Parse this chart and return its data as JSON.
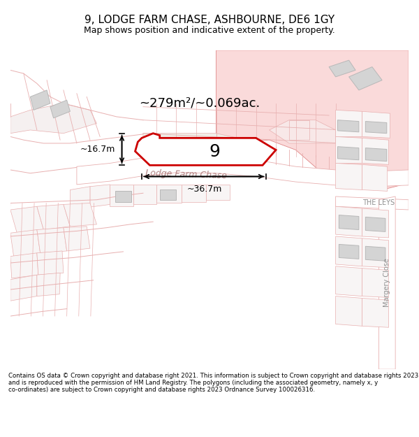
{
  "title": "9, LODGE FARM CHASE, ASHBOURNE, DE6 1GY",
  "subtitle": "Map shows position and indicative extent of the property.",
  "footer": "Contains OS data © Crown copyright and database right 2021. This information is subject to Crown copyright and database rights 2023 and is reproduced with the permission of HM Land Registry. The polygons (including the associated geometry, namely x, y co-ordinates) are subject to Crown copyright and database rights 2023 Ordnance Survey 100026316.",
  "area_label": "~279m²/~0.069ac.",
  "number_label": "9",
  "dim_h": "~16.7m",
  "dim_w": "~36.7m",
  "road_label": "Lodge Farm Chase",
  "road_label2": "THE LEYS",
  "road_label3": "Margery Close",
  "bg_color": "#ffffff",
  "plot_fill": "#ffffff",
  "plot_border": "#cc0000",
  "pink_fill": "#f5c8c8",
  "pink_fill2": "#fadada",
  "pink_border": "#e08888",
  "line_color": "#e8b0b0",
  "gray_fill": "#d4d4d4",
  "gray_border": "#b8b8b8"
}
